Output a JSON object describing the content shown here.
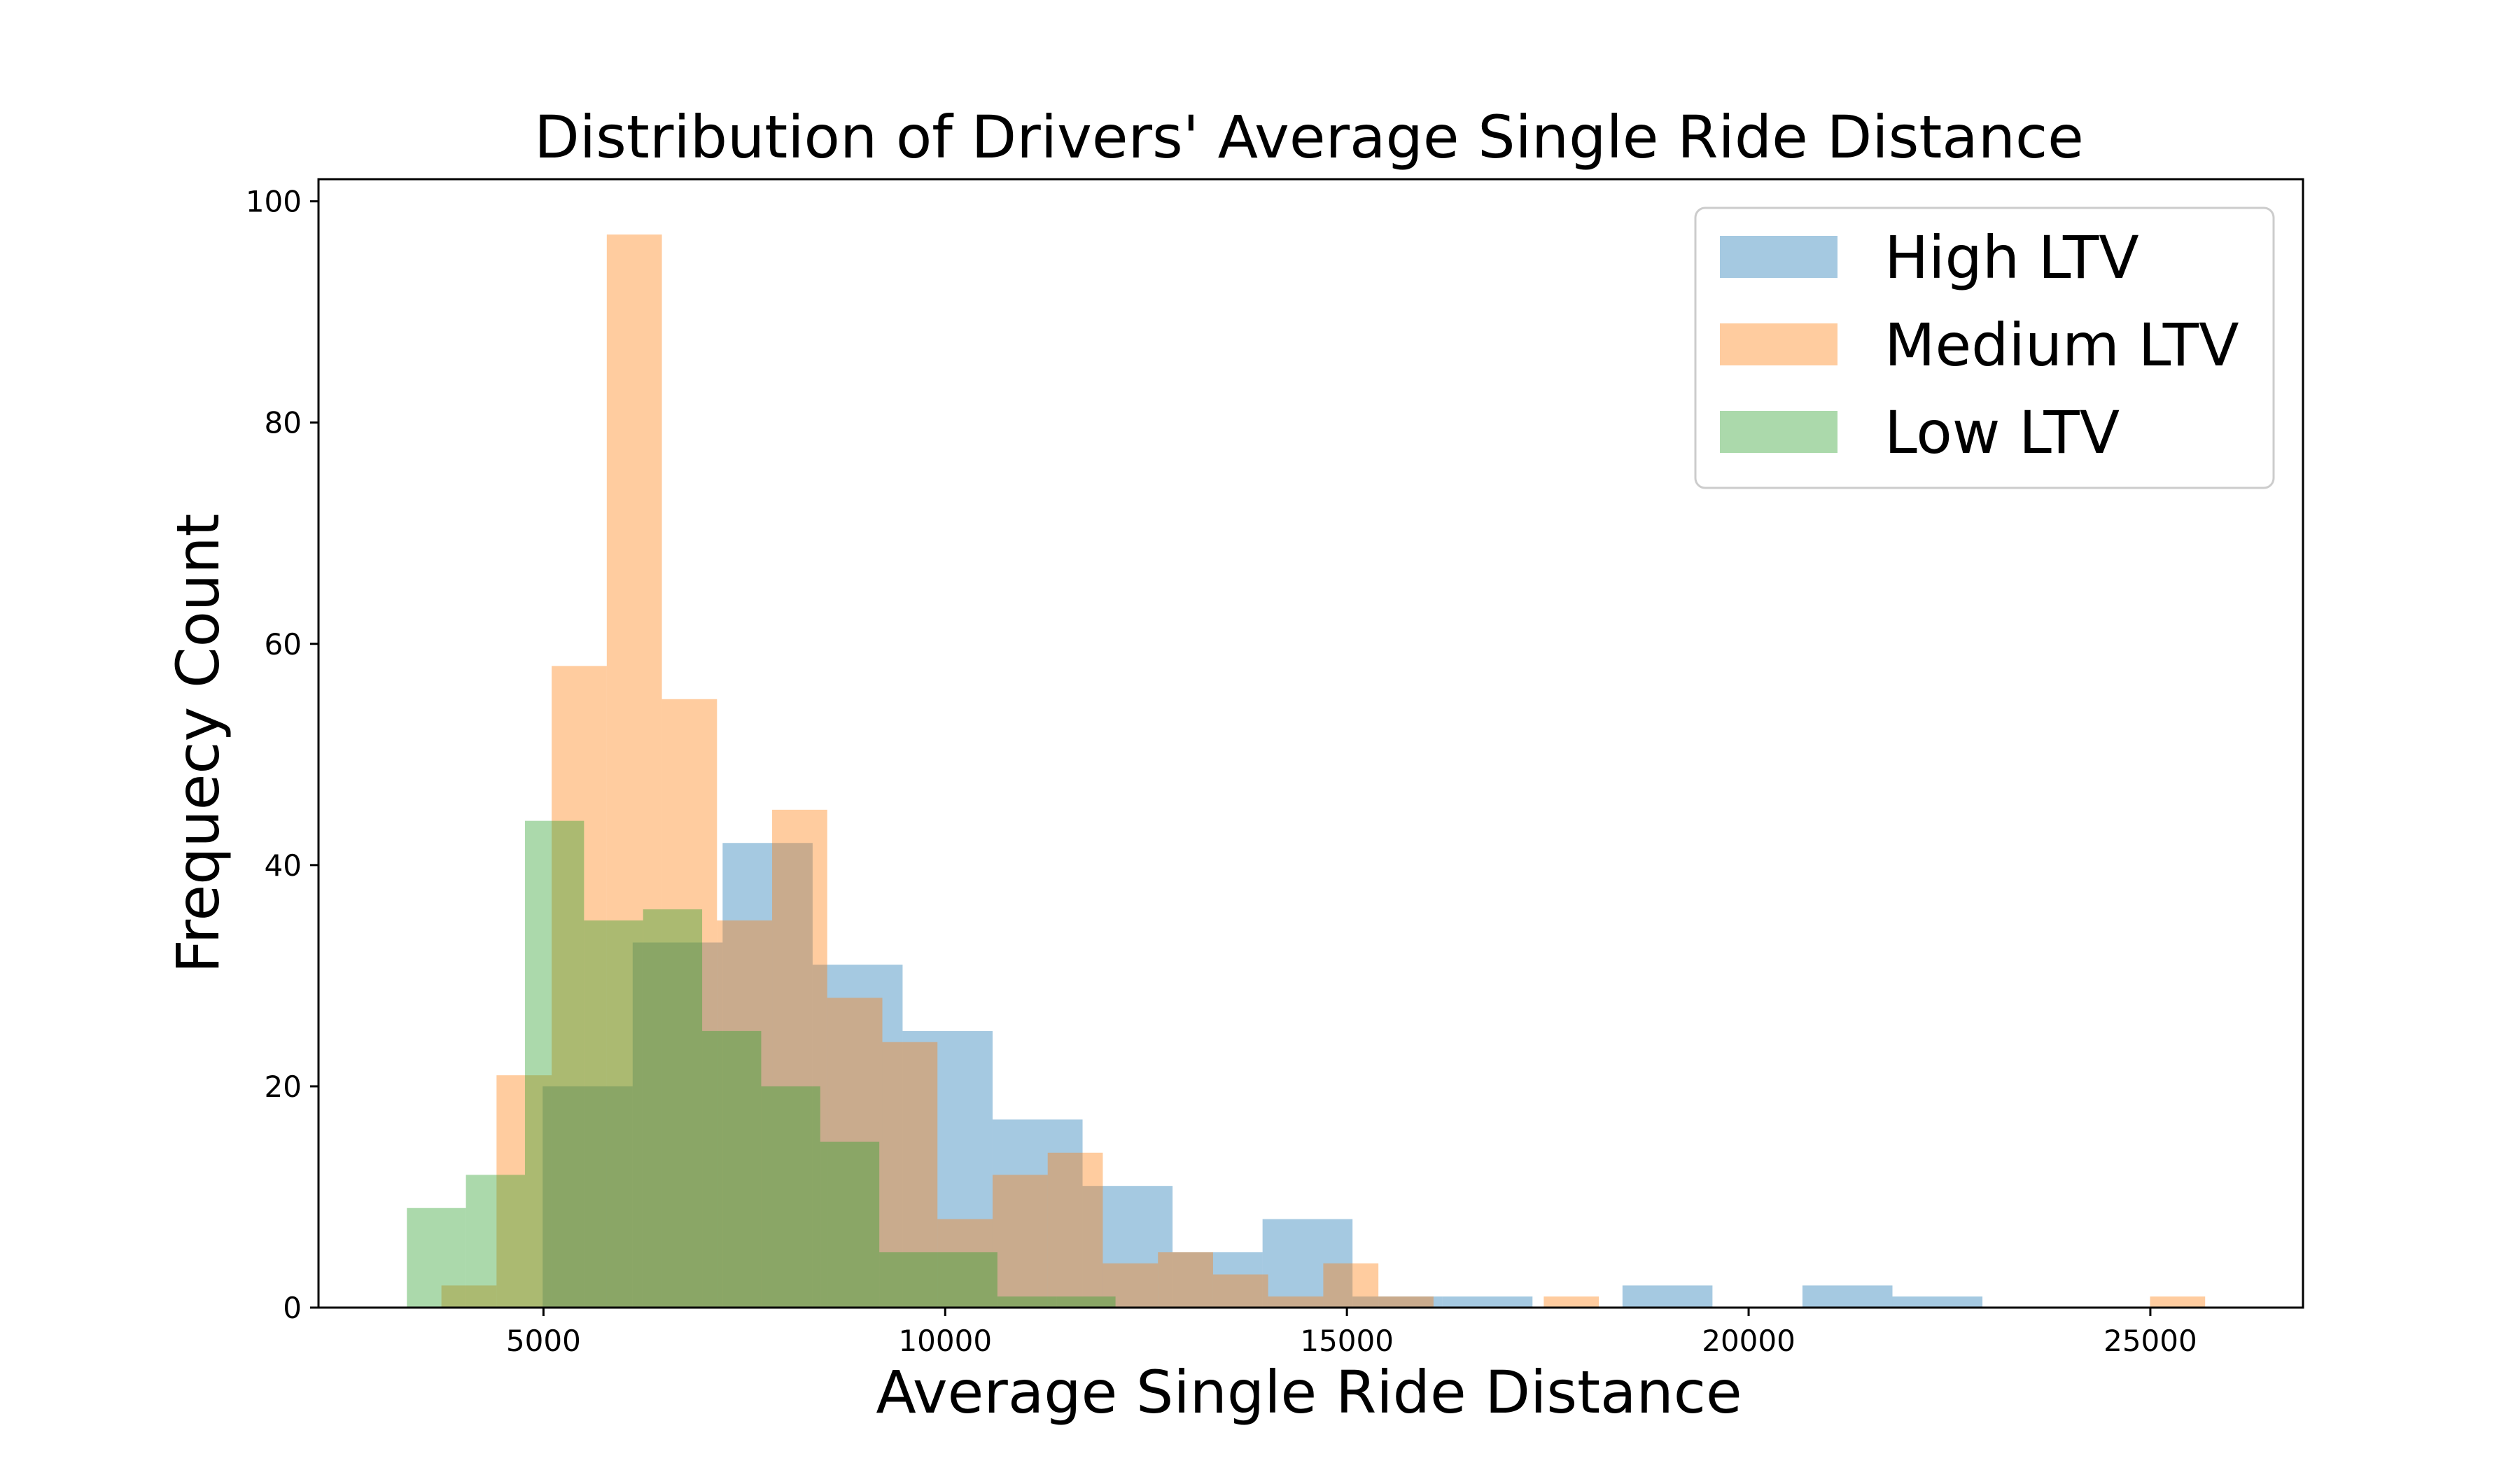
{
  "chart_data": {
    "type": "histogram",
    "title": "Distribution of Drivers' Average Single Ride Distance",
    "xlabel": "Average Single Ride Distance",
    "ylabel": "Frequecy Count",
    "xlim": [
      2200,
      26900
    ],
    "ylim": [
      0,
      102
    ],
    "x_ticks": [
      5000,
      10000,
      15000,
      20000,
      25000
    ],
    "y_ticks": [
      0,
      20,
      40,
      60,
      80,
      100
    ],
    "grid": false,
    "legend_position": "top-right",
    "series": [
      {
        "name": "High LTV",
        "color": "#1f77b4",
        "bin_start": 4990,
        "bin_width": 1120,
        "counts": [
          20,
          33,
          42,
          31,
          25,
          17,
          11,
          5,
          8,
          1,
          1,
          0,
          2,
          0,
          2,
          1
        ]
      },
      {
        "name": "Medium LTV",
        "color": "#ff7f0e",
        "bin_start": 3730,
        "bin_width": 686,
        "counts": [
          2,
          21,
          58,
          97,
          55,
          35,
          45,
          28,
          24,
          8,
          12,
          14,
          4,
          5,
          3,
          1,
          4,
          1,
          0,
          0,
          1,
          0,
          0,
          0,
          0,
          0,
          0,
          0,
          0,
          0,
          0,
          1
        ]
      },
      {
        "name": "Low LTV",
        "color": "#2ca02c",
        "bin_start": 3300,
        "bin_width": 735,
        "counts": [
          9,
          12,
          44,
          35,
          36,
          25,
          20,
          15,
          5,
          5,
          1,
          1
        ]
      }
    ]
  }
}
